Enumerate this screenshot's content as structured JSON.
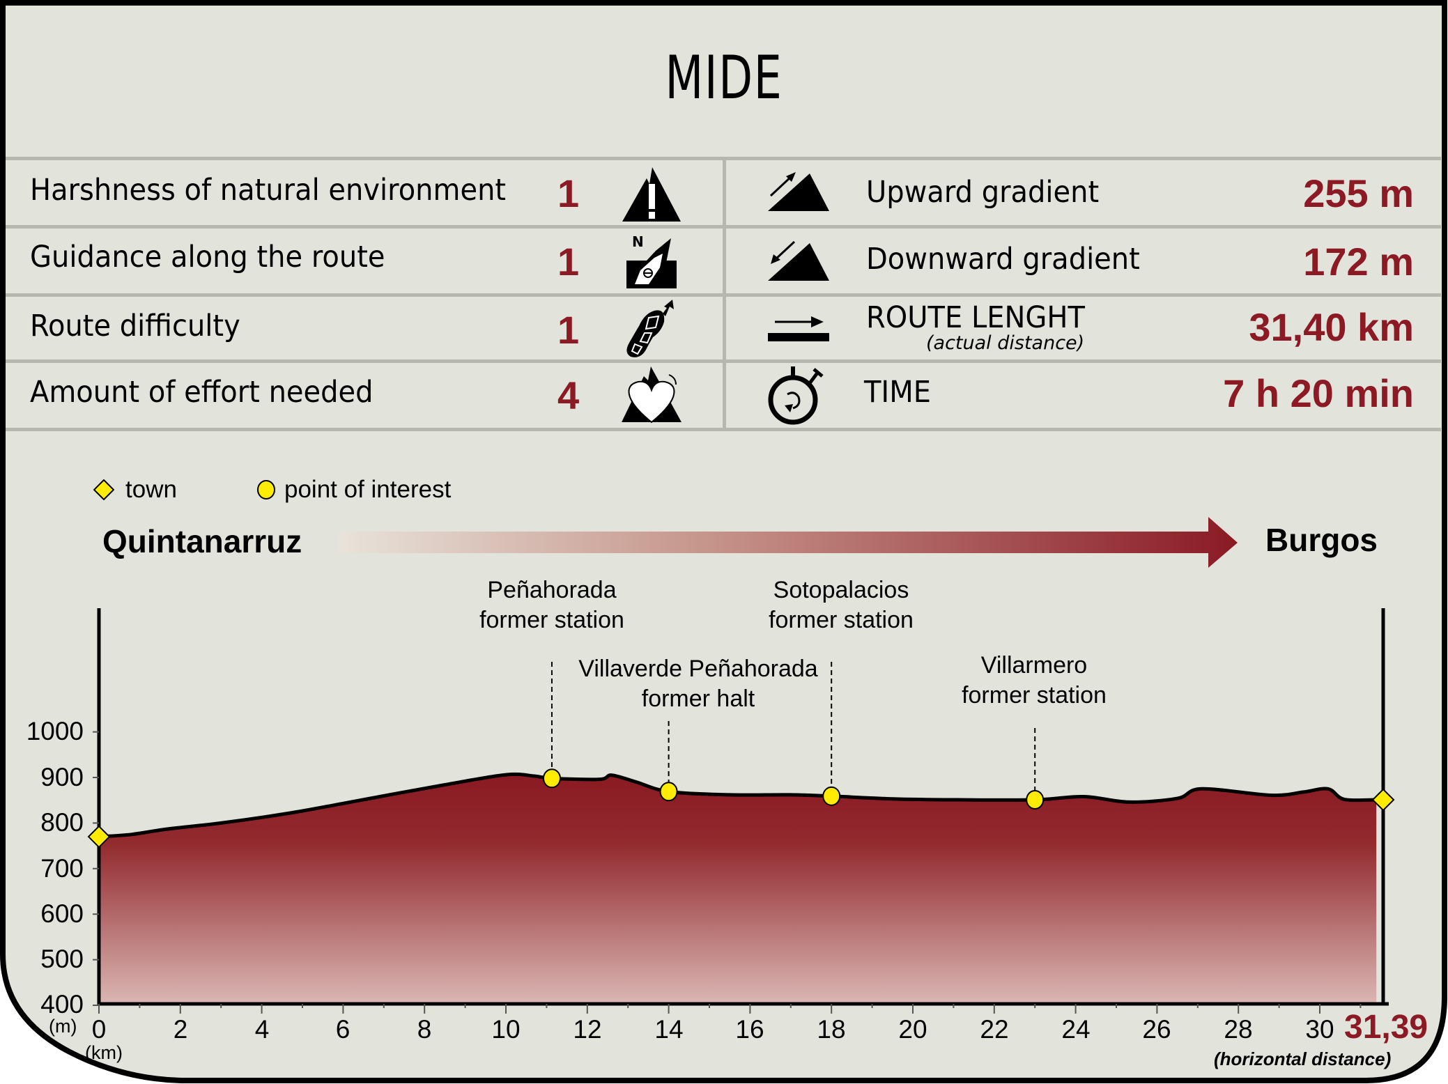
{
  "title": "MIDE",
  "mide_rows": [
    {
      "label": "Harshness of natural environment",
      "score": "1",
      "icon": "mountain-warning-icon"
    },
    {
      "label": "Guidance along the route",
      "score": "1",
      "icon": "compass-signpost-icon"
    },
    {
      "label": "Route difficulty",
      "score": "1",
      "icon": "boot-sole-icon"
    },
    {
      "label": "Amount of effort needed",
      "score": "4",
      "icon": "heart-mountain-icon"
    }
  ],
  "stats_rows": [
    {
      "label": "Upward gradient",
      "sublabel": "",
      "value": "255 m",
      "icon": "upward-gradient-icon"
    },
    {
      "label": "Downward gradient",
      "sublabel": "",
      "value": "172 m",
      "icon": "downward-gradient-icon"
    },
    {
      "label": "ROUTE LENGHT",
      "sublabel": "(actual distance)",
      "value": "31,40 km",
      "icon": "route-length-icon"
    },
    {
      "label": "TIME",
      "sublabel": "",
      "value": "7 h 20 min",
      "icon": "stopwatch-icon"
    }
  ],
  "legend": {
    "town": "town",
    "poi": "point of interest"
  },
  "route": {
    "start": "Quintanarruz",
    "end": "Burgos"
  },
  "colors": {
    "accent": "#8b1a24",
    "background": "#e2e3da",
    "divider": "#b6b7ae",
    "marker": "#ffec00",
    "fill_top": "#8a1a23",
    "fill_bottom": "#dbb8b5"
  },
  "axis": {
    "y_unit": "(m)",
    "x_unit": "(km)",
    "x_end_label": "31,39",
    "x_note": "(horizontal distance)"
  },
  "chart_data": {
    "type": "area",
    "title": "Elevation profile: Quintanarruz → Burgos",
    "xlabel": "(km)",
    "ylabel": "(m)",
    "xlim": [
      0,
      31.39
    ],
    "ylim": [
      400,
      1000
    ],
    "grid": false,
    "x_ticks": [
      "0",
      "2",
      "4",
      "6",
      "8",
      "10",
      "12",
      "14",
      "16",
      "18",
      "20",
      "22",
      "24",
      "26",
      "28",
      "30"
    ],
    "y_ticks": [
      "400",
      "500",
      "600",
      "700",
      "800",
      "900",
      "1000"
    ],
    "series": [
      {
        "name": "elevation",
        "x": [
          0,
          0.8,
          1.7,
          3,
          4.7,
          6,
          7.2,
          8.5,
          10,
          10.7,
          11.13,
          12.3,
          12.6,
          13.2,
          14.0,
          15.5,
          17,
          18.0,
          19.5,
          21,
          23.0,
          24.2,
          25.3,
          26.5,
          27.1,
          28.8,
          29.6,
          30.2,
          30.6,
          31.39
        ],
        "y": [
          770,
          775,
          787,
          800,
          822,
          843,
          863,
          884,
          906,
          903,
          898,
          896,
          905,
          890,
          869,
          862,
          862,
          859,
          853,
          851,
          851,
          858,
          846,
          854,
          875,
          861,
          868,
          875,
          852,
          851
        ]
      }
    ],
    "markers": [
      {
        "type": "town",
        "name": "Quintanarruz",
        "km": 0,
        "elevation": 770
      },
      {
        "type": "poi",
        "name": "Peñahorada former station",
        "km": 11.13,
        "elevation": 898
      },
      {
        "type": "poi",
        "name": "Villaverde Peñahorada former halt",
        "km": 14.0,
        "elevation": 869
      },
      {
        "type": "poi",
        "name": "Sotopalacios former station",
        "km": 18.0,
        "elevation": 859
      },
      {
        "type": "poi",
        "name": "Villarmero former station",
        "km": 23.0,
        "elevation": 851
      },
      {
        "type": "town",
        "name": "Burgos",
        "km": 31.39,
        "elevation": 851
      }
    ],
    "poi_labels": [
      {
        "line1": "Peñahorada",
        "line2": "former station"
      },
      {
        "line1": "Villaverde Peñahorada",
        "line2": "former halt"
      },
      {
        "line1": "Sotopalacios",
        "line2": "former station"
      },
      {
        "line1": "Villarmero",
        "line2": "former station"
      }
    ]
  }
}
